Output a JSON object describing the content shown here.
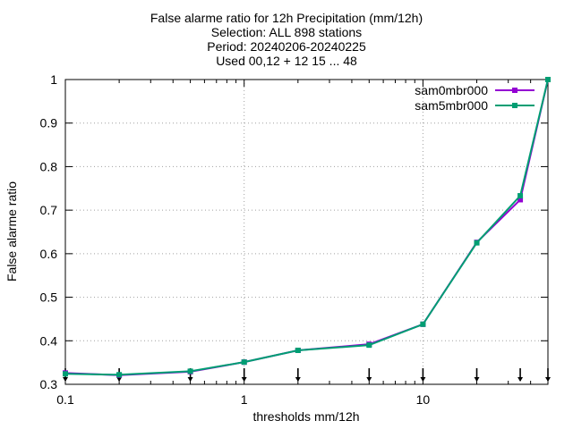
{
  "chart_data": {
    "type": "line",
    "title_lines": [
      "False alarme ratio  for 12h Precipitation (mm/12h)",
      "Selection: ALL    898 stations",
      "Period: 20240206-20240225",
      "Used 00,12 + 12 15 ... 48"
    ],
    "xlabel": "thresholds mm/12h",
    "ylabel": "False alarme ratio",
    "x_scale": "log",
    "xlim": [
      0.1,
      50
    ],
    "ylim": [
      0.3,
      1.0
    ],
    "x_ticks": [
      {
        "value": 0.1,
        "label": "0.1"
      },
      {
        "value": 1,
        "label": "1"
      },
      {
        "value": 10,
        "label": "10"
      }
    ],
    "y_ticks": [
      {
        "value": 0.3,
        "label": "0.3"
      },
      {
        "value": 0.4,
        "label": "0.4"
      },
      {
        "value": 0.5,
        "label": "0.5"
      },
      {
        "value": 0.6,
        "label": "0.6"
      },
      {
        "value": 0.7,
        "label": "0.7"
      },
      {
        "value": 0.8,
        "label": "0.8"
      },
      {
        "value": 0.9,
        "label": "0.9"
      },
      {
        "value": 1.0,
        "label": "1"
      }
    ],
    "grid": true,
    "legend_position": "top-right",
    "x": [
      0.1,
      0.2,
      0.5,
      1,
      2,
      5,
      10,
      20,
      35,
      50
    ],
    "series": [
      {
        "name": "sam0mbr000",
        "color": "#9400d3",
        "values": [
          0.326,
          0.321,
          0.329,
          0.351,
          0.378,
          0.392,
          0.438,
          0.626,
          0.724,
          1.0
        ]
      },
      {
        "name": "sam5mbr000",
        "color": "#009e73",
        "values": [
          0.324,
          0.322,
          0.33,
          0.351,
          0.378,
          0.39,
          0.438,
          0.625,
          0.733,
          1.0
        ]
      }
    ],
    "threshold_markers": [
      0.1,
      0.2,
      0.5,
      1,
      2,
      5,
      10,
      20,
      35,
      50
    ]
  }
}
